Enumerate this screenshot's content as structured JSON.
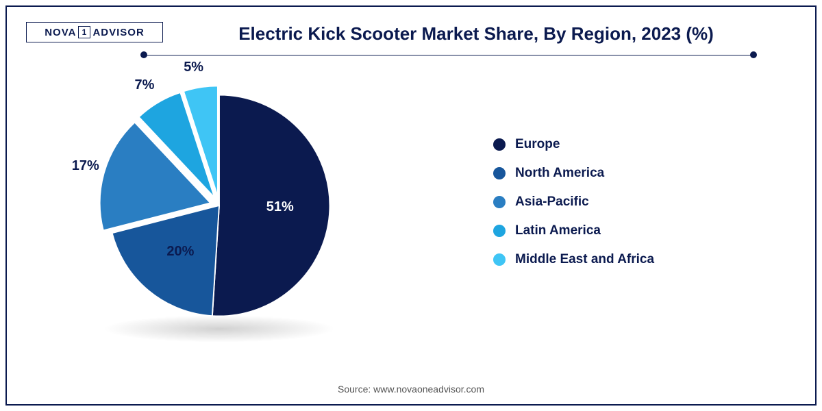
{
  "logo": {
    "part1": "NOVA",
    "boxed": "1",
    "part2": "ADVISOR"
  },
  "title": "Electric Kick Scooter Market Share, By Region, 2023 (%)",
  "source": "Source: www.novaoneadvisor.com",
  "chart": {
    "type": "pie",
    "background_color": "#ffffff",
    "title_fontsize": 26,
    "title_color": "#0b1a4f",
    "label_fontsize": 20,
    "legend_fontsize": 19,
    "legend_color": "#0b1a4f",
    "slice_separator_color": "#ffffff",
    "slice_separator_width": 2,
    "exploded_slices": [
      2,
      3,
      4
    ],
    "explode_distance": 14,
    "slices": [
      {
        "label": "Europe",
        "value": 51,
        "display": "51%",
        "color": "#0b1a4f"
      },
      {
        "label": "North America",
        "value": 20,
        "display": "20%",
        "color": "#17569b"
      },
      {
        "label": "Asia-Pacific",
        "value": 17,
        "display": "17%",
        "color": "#2a7ec2"
      },
      {
        "label": "Latin America",
        "value": 7,
        "display": "7%",
        "color": "#1ea5e0"
      },
      {
        "label": "Middle East and Africa",
        "value": 5,
        "display": "5%",
        "color": "#3fc5f5"
      }
    ]
  }
}
